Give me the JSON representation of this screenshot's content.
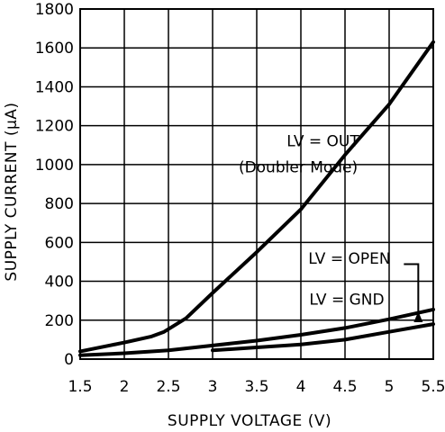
{
  "chart_data": {
    "type": "line",
    "title": "",
    "xlabel": "SUPPLY VOLTAGE (V)",
    "ylabel": "SUPPLY CURRENT (μA)",
    "xlim": [
      1.5,
      5.5
    ],
    "ylim": [
      0,
      1800
    ],
    "xticks": [
      1.5,
      2,
      2.5,
      3,
      3.5,
      4,
      4.5,
      5,
      5.5
    ],
    "xtick_labels": [
      "1.5",
      "2",
      "2.5",
      "3",
      "3.5",
      "4",
      "4.5",
      "5",
      "5.5"
    ],
    "yticks": [
      0,
      200,
      400,
      600,
      800,
      1000,
      1200,
      1400,
      1600,
      1800
    ],
    "ytick_labels": [
      "0",
      "200",
      "400",
      "600",
      "800",
      "1000",
      "1200",
      "1400",
      "1600",
      "1800"
    ],
    "grid": true,
    "legend": "none",
    "series": [
      {
        "name": "LV = OUT (Doubler Mode)",
        "x": [
          1.5,
          2.0,
          2.3,
          2.45,
          2.7,
          3.0,
          3.5,
          4.0,
          4.5,
          5.0,
          5.5
        ],
        "y": [
          40,
          85,
          115,
          140,
          210,
          340,
          550,
          770,
          1050,
          1310,
          1630
        ]
      },
      {
        "name": "LV = OPEN",
        "x": [
          1.5,
          2.0,
          2.5,
          3.0,
          3.5,
          4.0,
          4.5,
          5.0,
          5.5
        ],
        "y": [
          20,
          30,
          45,
          70,
          95,
          125,
          160,
          205,
          255
        ]
      },
      {
        "name": "LV = GND",
        "x": [
          3.0,
          3.5,
          4.0,
          4.5,
          5.0,
          5.5
        ],
        "y": [
          45,
          60,
          75,
          100,
          140,
          180
        ]
      }
    ],
    "annotations": [
      {
        "text": "LV = OUT",
        "x": 4.25,
        "y": 1095
      },
      {
        "text": "(Doubler Mode)",
        "x": 3.97,
        "y": 960
      },
      {
        "text": "LV = OPEN",
        "x": 4.55,
        "y": 490
      },
      {
        "text": "LV = GND",
        "x": 4.52,
        "y": 280
      }
    ]
  }
}
